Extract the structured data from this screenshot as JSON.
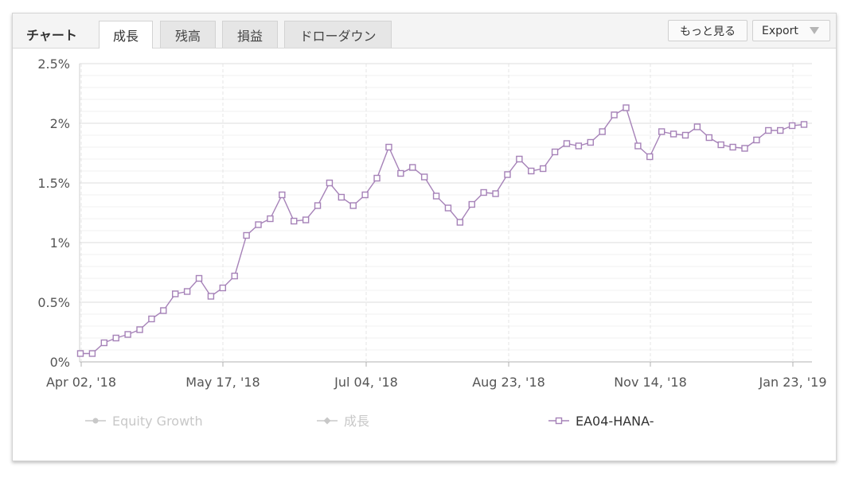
{
  "header": {
    "title": "チャート",
    "tabs": [
      {
        "label": "成長",
        "active": true
      },
      {
        "label": "残高",
        "active": false
      },
      {
        "label": "損益",
        "active": false
      },
      {
        "label": "ドローダウン",
        "active": false
      }
    ],
    "more_label": "もっと見る",
    "export_label": "Export"
  },
  "colors": {
    "series_main": "#a682b8",
    "legend_inactive": "#c8c8c8"
  },
  "chart_data": {
    "type": "line",
    "title": "",
    "xlabel": "",
    "ylabel": "",
    "x_ticks": [
      "Apr 02, '18",
      "May 17, '18",
      "Jul 04, '18",
      "Aug 23, '18",
      "Nov 14, '18",
      "Jan 23, '19"
    ],
    "y_ticks": [
      "0%",
      "0.5%",
      "1%",
      "1.5%",
      "2%",
      "2.5%"
    ],
    "ylim": [
      0,
      2.5
    ],
    "y_unit": "%",
    "grid": true,
    "legend_position": "bottom",
    "legend": [
      {
        "name": "Equity Growth",
        "visible": false,
        "marker": "circle"
      },
      {
        "name": "成長",
        "visible": false,
        "marker": "diamond"
      },
      {
        "name": "EA04-HANA-",
        "visible": true,
        "marker": "square"
      }
    ],
    "series": [
      {
        "name": "EA04-HANA-",
        "marker": "square",
        "values": [
          0.07,
          0.07,
          0.16,
          0.2,
          0.23,
          0.27,
          0.36,
          0.43,
          0.57,
          0.59,
          0.7,
          0.55,
          0.62,
          0.72,
          1.06,
          1.15,
          1.2,
          1.4,
          1.18,
          1.19,
          1.31,
          1.5,
          1.38,
          1.31,
          1.4,
          1.54,
          1.8,
          1.58,
          1.63,
          1.55,
          1.39,
          1.29,
          1.17,
          1.32,
          1.42,
          1.41,
          1.57,
          1.7,
          1.6,
          1.62,
          1.76,
          1.83,
          1.81,
          1.84,
          1.93,
          2.07,
          2.13,
          1.81,
          1.72,
          1.93,
          1.91,
          1.9,
          1.97,
          1.88,
          1.82,
          1.8,
          1.79,
          1.86,
          1.94,
          1.94,
          1.98,
          1.99
        ]
      }
    ]
  }
}
